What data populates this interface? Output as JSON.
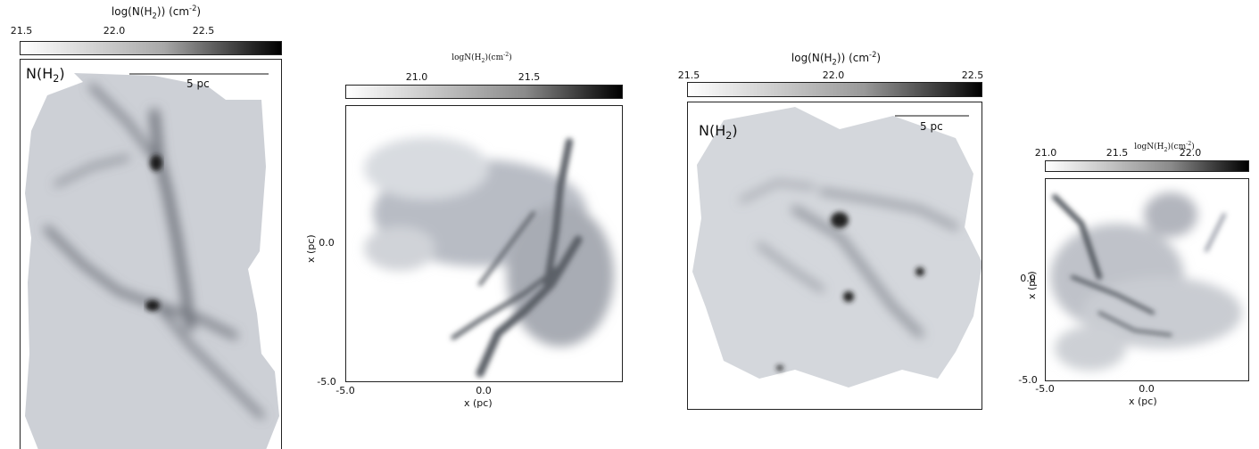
{
  "panels": [
    {
      "colorbar": {
        "title_main": "log(N(H",
        "title_sub": "2",
        "title_mid": ")) (cm",
        "title_sup": "-2",
        "title_end": ")",
        "ticks": [
          "21.5",
          "22.0",
          "22.5"
        ]
      },
      "map_label_main": "N(H",
      "map_label_sub": "2",
      "map_label_end": ")",
      "scale_bar_label": "5 pc"
    },
    {
      "colorbar": {
        "title_main": "logN(H",
        "title_sub": "2",
        "title_mid": ")(cm",
        "title_sup": "-2",
        "title_end": ")",
        "ticks": [
          "21.0",
          "21.5"
        ]
      },
      "x_ticks": [
        "-5.0",
        "0.0"
      ],
      "y_ticks": [
        "-5.0",
        "0.0"
      ],
      "xlabel": "x (pc)",
      "ylabel": "x (pc)"
    },
    {
      "colorbar": {
        "title_main": "log(N(H",
        "title_sub": "2",
        "title_mid": ")) (cm",
        "title_sup": "-2",
        "title_end": ")",
        "ticks": [
          "21.5",
          "22.0",
          "22.5"
        ]
      },
      "map_label_main": "N(H",
      "map_label_sub": "2",
      "map_label_end": ")",
      "scale_bar_label": "5 pc"
    },
    {
      "colorbar": {
        "title_main": "logN(H",
        "title_sub": "2",
        "title_mid": ")(cm",
        "title_sup": "-2",
        "title_end": ")",
        "ticks": [
          "21.0",
          "21.5",
          "22.0"
        ]
      },
      "x_ticks": [
        "-5.0",
        "0.0"
      ],
      "y_ticks": [
        "-5.0",
        "0.0"
      ],
      "xlabel": "x (pc)",
      "ylabel": "x (pc)"
    }
  ]
}
